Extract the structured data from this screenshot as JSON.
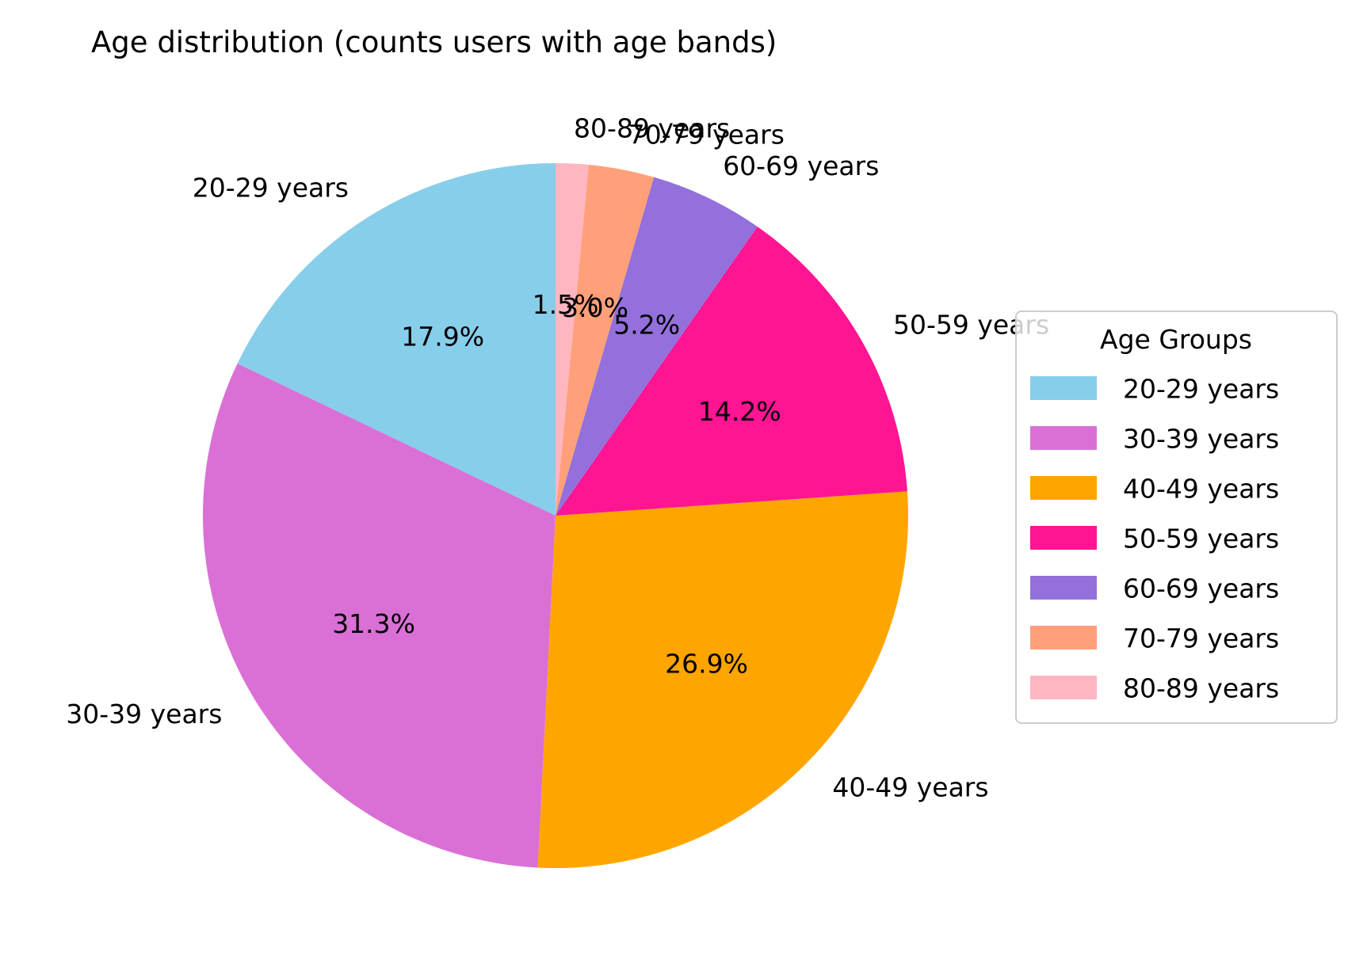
{
  "chart_data": {
    "type": "pie",
    "title": "Age distribution (counts users with age bands)",
    "categories": [
      "20-29 years",
      "30-39 years",
      "40-49 years",
      "50-59 years",
      "60-69 years",
      "70-79 years",
      "80-89 years"
    ],
    "values": [
      17.9,
      31.3,
      26.9,
      14.2,
      5.2,
      3.0,
      1.5
    ],
    "percent_labels": [
      "17.9%",
      "31.3%",
      "26.9%",
      "14.2%",
      "5.2%",
      "3.0%",
      "1.5%"
    ],
    "colors": [
      "#87CEEB",
      "#DA70D6",
      "#FFA500",
      "#FF1493",
      "#9370DB",
      "#FFA07A",
      "#FFB6C1"
    ],
    "start_angle_deg": 90,
    "direction": "counterclockwise",
    "legend": {
      "title": "Age Groups",
      "placement": "center-right",
      "entries": [
        "20-29 years",
        "30-39 years",
        "40-49 years",
        "50-59 years",
        "60-69 years",
        "70-79 years",
        "80-89 years"
      ]
    }
  }
}
